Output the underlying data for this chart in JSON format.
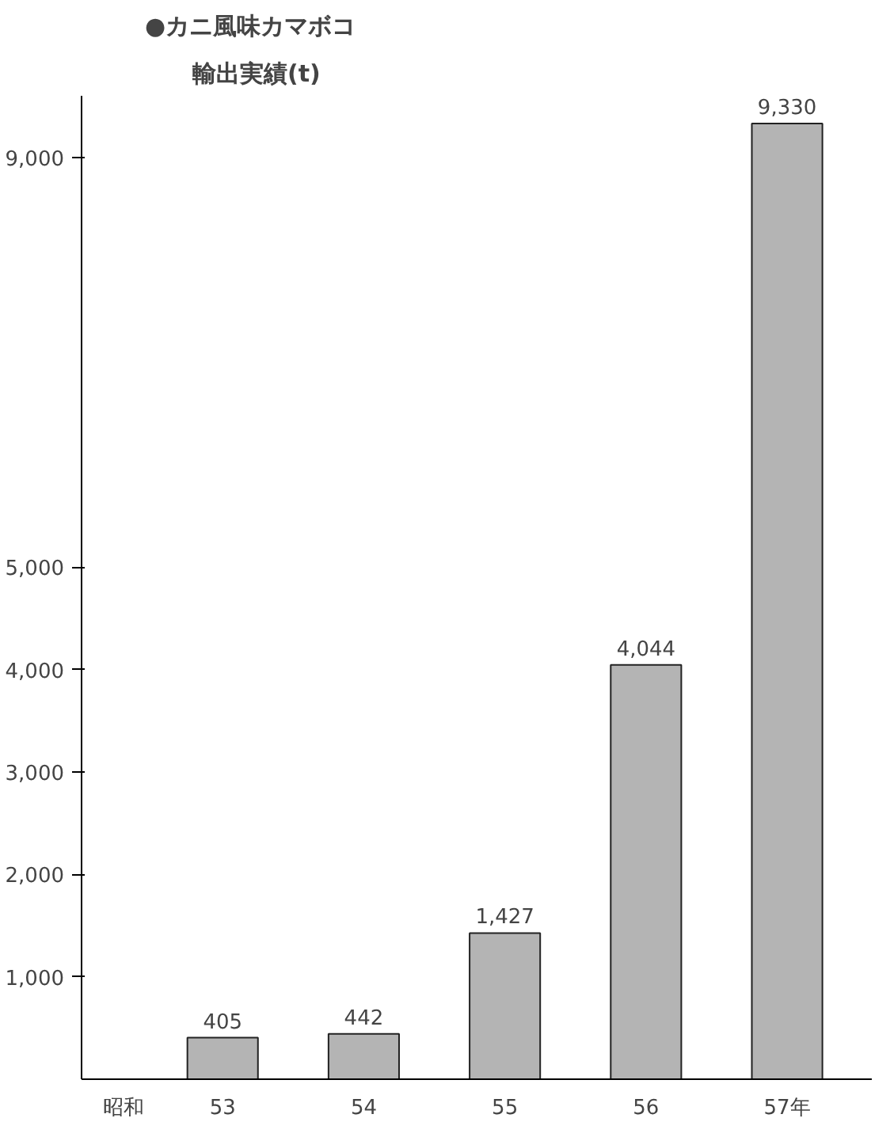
{
  "chart_data": {
    "type": "bar",
    "title": "●カニ風味カマボコ",
    "subtitle": "輸出実績(t)",
    "annotations": [
      "昭和"
    ],
    "categories": [
      "53",
      "54",
      "55",
      "56",
      "57年"
    ],
    "values": [
      405,
      442,
      1427,
      4044,
      9330
    ],
    "color": "#b4b4b4",
    "ylim": [
      0,
      9600
    ],
    "yticks": [
      {
        "value": 1000,
        "label": "1,000"
      },
      {
        "value": 2000,
        "label": "2,000"
      },
      {
        "value": 3000,
        "label": "3,000"
      },
      {
        "value": 4000,
        "label": "4,000"
      },
      {
        "value": 5000,
        "label": "5,000"
      },
      {
        "value": 9000,
        "label": "9,000"
      }
    ],
    "value_labels": [
      "405",
      "442",
      "1,427",
      "4,044",
      "9,330"
    ],
    "grid": false
  }
}
